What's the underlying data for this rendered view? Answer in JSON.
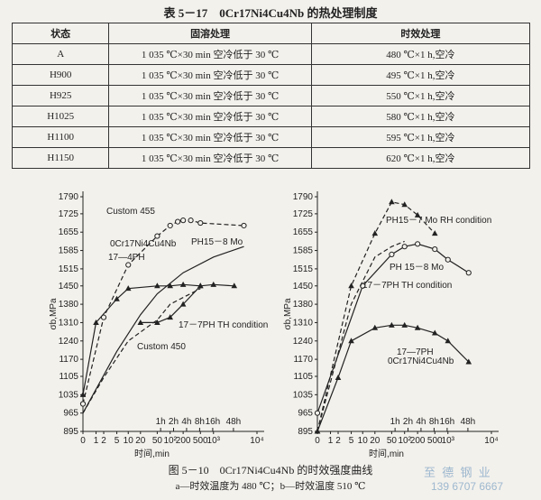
{
  "table": {
    "title": "表 5－17　0Cr17Ni4Cu4Nb 的热处理制度",
    "header": [
      "状态",
      "固溶处理",
      "时效处理"
    ],
    "rows": [
      [
        "A",
        "1 035 ℃×30 min 空冷低于 30 ℃",
        "480 ℃×1 h,空冷"
      ],
      [
        "H900",
        "1 035 ℃×30 min 空冷低于 30 ℃",
        "495 ℃×1 h,空冷"
      ],
      [
        "H925",
        "1 035 ℃×30 min 空冷低于 30 ℃",
        "550 ℃×1 h,空冷"
      ],
      [
        "H1025",
        "1 035 ℃×30 min 空冷低于 30 ℃",
        "580 ℃×1 h,空冷"
      ],
      [
        "H1100",
        "1 035 ℃×30 min 空冷低于 30 ℃",
        "595 ℃×1 h,空冷"
      ],
      [
        "H1150",
        "1 035 ℃×30 min 空冷低于 30 ℃",
        "620 ℃×1 h,空冷"
      ]
    ]
  },
  "figure": {
    "caption": "图 5－10　0Cr17Ni4Cu4Nb 的时效强度曲线",
    "subcaption": "a—时效温度为 480 ℃；b—时效温度 510 ℃",
    "panels": [
      {
        "type": "line",
        "y_label": "σb,MPa",
        "x_label": "时间,min",
        "log_x": true,
        "line_color": "#222",
        "ylim": [
          895,
          1790
        ],
        "yticks": [
          895,
          965,
          1035,
          1105,
          1170,
          1240,
          1310,
          1380,
          1450,
          1515,
          1585,
          1655,
          1725,
          1790
        ],
        "xlim": [
          0,
          10000
        ],
        "xticks": [
          0,
          1,
          2,
          5,
          10,
          20,
          50,
          {
            "value": 100,
            "label": "10²"
          },
          200,
          500,
          {
            "value": 1000,
            "label": "10³"
          },
          {
            "value": 10000,
            "label": "10⁴"
          }
        ],
        "time_ticks": [
          {
            "value": 60,
            "label": "1h"
          },
          {
            "value": 120,
            "label": "2h"
          },
          {
            "value": 240,
            "label": "4h"
          },
          {
            "value": 480,
            "label": "8h"
          },
          {
            "value": 960,
            "label": "16h"
          },
          {
            "value": 2880,
            "label": "48h"
          }
        ],
        "series": [
          {
            "name": "Custom 455",
            "dash": true,
            "marker": "circle",
            "x": [
              0,
              2,
              10,
              50,
              100,
              150,
              200,
              300,
              500,
              5000
            ],
            "y": [
              1000,
              1330,
              1530,
              1640,
              1680,
              1695,
              1700,
              1700,
              1690,
              1680
            ]
          },
          {
            "name": "0Cr17Ni4Cu4Nb",
            "dash": false,
            "marker": "triangle",
            "x": [
              0,
              1,
              5,
              10,
              50,
              100,
              200,
              500,
              1000,
              3000
            ],
            "y": [
              1035,
              1310,
              1400,
              1440,
              1450,
              1450,
              1455,
              1450,
              1455,
              1450
            ]
          },
          {
            "name": "PH15－8 Mo",
            "dash": false,
            "marker": "none",
            "x": [
              0,
              5,
              20,
              50,
              200,
              1000,
              5000
            ],
            "y": [
              965,
              1200,
              1340,
              1420,
              1500,
              1560,
              1600
            ]
          },
          {
            "name": "17－7PH TH condition",
            "dash": true,
            "marker": "none",
            "x": [
              0,
              2,
              10,
              50,
              100,
              500
            ],
            "y": [
              965,
              1100,
              1240,
              1320,
              1380,
              1440
            ]
          },
          {
            "name": "Custom 450",
            "dash": false,
            "marker": "triangle",
            "x": [
              20,
              50,
              100,
              200,
              500
            ],
            "y": [
              1310,
              1310,
              1330,
              1380,
              1450
            ]
          }
        ],
        "annotations": [
          "17—4PH"
        ]
      },
      {
        "type": "line",
        "y_label": "σb,MPa",
        "x_label": "时间,min",
        "log_x": true,
        "line_color": "#222",
        "ylim": [
          895,
          1790
        ],
        "yticks": [
          895,
          965,
          1035,
          1105,
          1170,
          1240,
          1310,
          1380,
          1450,
          1515,
          1585,
          1655,
          1725,
          1790
        ],
        "xlim": [
          0,
          10000
        ],
        "xticks": [
          0,
          1,
          2,
          5,
          10,
          20,
          50,
          {
            "value": 100,
            "label": "10²"
          },
          200,
          500,
          {
            "value": 1000,
            "label": "10³"
          },
          {
            "value": 10000,
            "label": "10⁴"
          }
        ],
        "time_ticks": [
          {
            "value": 60,
            "label": "1h"
          },
          {
            "value": 120,
            "label": "2h"
          },
          {
            "value": 240,
            "label": "4h"
          },
          {
            "value": 480,
            "label": "8h"
          },
          {
            "value": 960,
            "label": "16h"
          },
          {
            "value": 2880,
            "label": "48h"
          }
        ],
        "series": [
          {
            "name": "PH15－7 Mo RH condition",
            "dash": true,
            "marker": "triangle",
            "x": [
              0,
              5,
              20,
              50,
              100,
              200,
              500
            ],
            "y": [
              895,
              1450,
              1650,
              1770,
              1760,
              1720,
              1650
            ]
          },
          {
            "name": "PH 15－8 Mo",
            "dash": false,
            "marker": "circle",
            "x": [
              0,
              10,
              50,
              100,
              200,
              500,
              1000,
              3000
            ],
            "y": [
              965,
              1450,
              1570,
              1600,
              1610,
              1590,
              1550,
              1500
            ]
          },
          {
            "name": "17－7PH TH condition",
            "dash": true,
            "marker": "none",
            "x": [
              0,
              5,
              20,
              50,
              100
            ],
            "y": [
              895,
              1380,
              1560,
              1600,
              1620
            ]
          },
          {
            "name": "0Cr17Ni4Cu4Nb",
            "dash": false,
            "marker": "triangle",
            "x": [
              0,
              2,
              5,
              20,
              50,
              100,
              200,
              500,
              1000,
              3000
            ],
            "y": [
              895,
              1100,
              1240,
              1290,
              1300,
              1300,
              1290,
              1270,
              1240,
              1160
            ]
          }
        ],
        "annotations": [
          "17—7PH"
        ]
      }
    ]
  },
  "watermark": {
    "name": "至 德 钢 业",
    "phone": "139 6707 6667"
  }
}
